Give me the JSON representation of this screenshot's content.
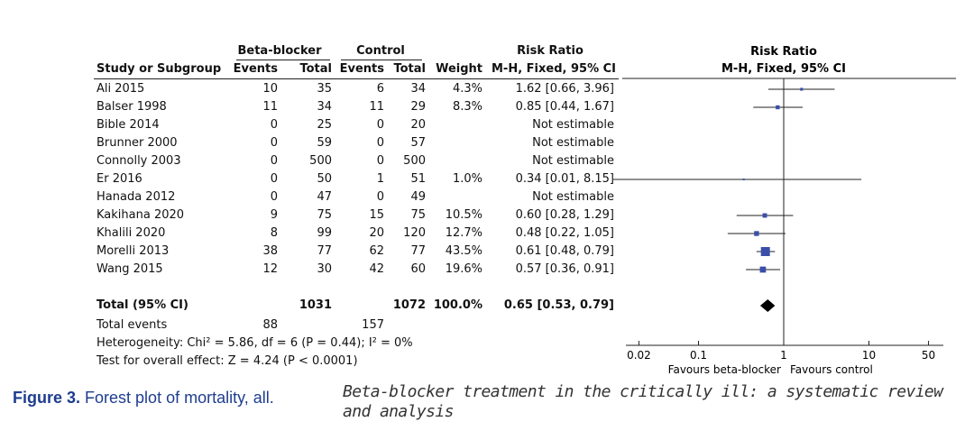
{
  "table": {
    "group_headers": {
      "experimental": "Beta-blocker",
      "control": "Control",
      "effect": "Risk Ratio"
    },
    "columns": {
      "study": "Study or Subgroup",
      "e_events": "Events",
      "e_total": "Total",
      "c_events": "Events",
      "c_total": "Total",
      "weight": "Weight",
      "rr": "M-H, Fixed, 95% CI"
    },
    "rows": [
      {
        "study": "Ali 2015",
        "e_events": "10",
        "e_total": "35",
        "c_events": "6",
        "c_total": "34",
        "weight": "4.3%",
        "rr": "1.62 [0.66, 3.96]"
      },
      {
        "study": "Balser 1998",
        "e_events": "11",
        "e_total": "34",
        "c_events": "11",
        "c_total": "29",
        "weight": "8.3%",
        "rr": "0.85 [0.44, 1.67]"
      },
      {
        "study": "Bible 2014",
        "e_events": "0",
        "e_total": "25",
        "c_events": "0",
        "c_total": "20",
        "weight": "",
        "rr": "Not estimable"
      },
      {
        "study": "Brunner 2000",
        "e_events": "0",
        "e_total": "59",
        "c_events": "0",
        "c_total": "57",
        "weight": "",
        "rr": "Not estimable"
      },
      {
        "study": "Connolly 2003",
        "e_events": "0",
        "e_total": "500",
        "c_events": "0",
        "c_total": "500",
        "weight": "",
        "rr": "Not estimable"
      },
      {
        "study": "Er 2016",
        "e_events": "0",
        "e_total": "50",
        "c_events": "1",
        "c_total": "51",
        "weight": "1.0%",
        "rr": "0.34 [0.01, 8.15]"
      },
      {
        "study": "Hanada 2012",
        "e_events": "0",
        "e_total": "47",
        "c_events": "0",
        "c_total": "49",
        "weight": "",
        "rr": "Not estimable"
      },
      {
        "study": "Kakihana 2020",
        "e_events": "9",
        "e_total": "75",
        "c_events": "15",
        "c_total": "75",
        "weight": "10.5%",
        "rr": "0.60 [0.28, 1.29]"
      },
      {
        "study": "Khalili 2020",
        "e_events": "8",
        "e_total": "99",
        "c_events": "20",
        "c_total": "120",
        "weight": "12.7%",
        "rr": "0.48 [0.22, 1.05]"
      },
      {
        "study": "Morelli 2013",
        "e_events": "38",
        "e_total": "77",
        "c_events": "62",
        "c_total": "77",
        "weight": "43.5%",
        "rr": "0.61 [0.48, 0.79]"
      },
      {
        "study": "Wang 2015",
        "e_events": "12",
        "e_total": "30",
        "c_events": "42",
        "c_total": "60",
        "weight": "19.6%",
        "rr": "0.57 [0.36, 0.91]"
      }
    ],
    "total": {
      "label": "Total (95% CI)",
      "e_total": "1031",
      "c_total": "1072",
      "weight": "100.0%",
      "rr": "0.65 [0.53, 0.79]"
    },
    "total_events": {
      "label": "Total events",
      "e_events": "88",
      "c_events": "157"
    },
    "heterogeneity": "Heterogeneity: Chi² = 5.86, df = 6 (P = 0.44); I² = 0%",
    "overall_effect": "Test for overall effect: Z = 4.24 (P < 0.0001)"
  },
  "chart_data": {
    "type": "scatter",
    "title": "Risk Ratio",
    "subtitle": "M-H, Fixed, 95% CI",
    "x_scale": "log",
    "xlim": [
      0.01,
      100
    ],
    "x_ticks": [
      0.02,
      0.1,
      1,
      10,
      50
    ],
    "x_tick_labels": [
      "0.02",
      "0.1",
      "1",
      "10",
      "50"
    ],
    "reference_line": 1,
    "xlabel_left": "Favours beta-blocker",
    "xlabel_right": "Favours control",
    "marker_color": "#3b4fa8",
    "diamond_color": "#000000",
    "studies": [
      {
        "study": "Ali 2015",
        "rr": 1.62,
        "lo": 0.66,
        "hi": 3.96,
        "weight": 4.3
      },
      {
        "study": "Balser 1998",
        "rr": 0.85,
        "lo": 0.44,
        "hi": 1.67,
        "weight": 8.3
      },
      {
        "study": "Bible 2014",
        "rr": null,
        "lo": null,
        "hi": null,
        "weight": null
      },
      {
        "study": "Brunner 2000",
        "rr": null,
        "lo": null,
        "hi": null,
        "weight": null
      },
      {
        "study": "Connolly 2003",
        "rr": null,
        "lo": null,
        "hi": null,
        "weight": null
      },
      {
        "study": "Er 2016",
        "rr": 0.34,
        "lo": 0.01,
        "hi": 8.15,
        "weight": 1.0
      },
      {
        "study": "Hanada 2012",
        "rr": null,
        "lo": null,
        "hi": null,
        "weight": null
      },
      {
        "study": "Kakihana 2020",
        "rr": 0.6,
        "lo": 0.28,
        "hi": 1.29,
        "weight": 10.5
      },
      {
        "study": "Khalili 2020",
        "rr": 0.48,
        "lo": 0.22,
        "hi": 1.05,
        "weight": 12.7
      },
      {
        "study": "Morelli 2013",
        "rr": 0.61,
        "lo": 0.48,
        "hi": 0.79,
        "weight": 43.5
      },
      {
        "study": "Wang 2015",
        "rr": 0.57,
        "lo": 0.36,
        "hi": 0.91,
        "weight": 19.6
      }
    ],
    "pooled": {
      "rr": 0.65,
      "lo": 0.53,
      "hi": 0.79
    }
  },
  "figure": {
    "label": "Figure 3.",
    "title": "Forest plot of mortality, all.",
    "caption": "Beta-blocker treatment in the critically ill: a systematic review and analysis"
  }
}
